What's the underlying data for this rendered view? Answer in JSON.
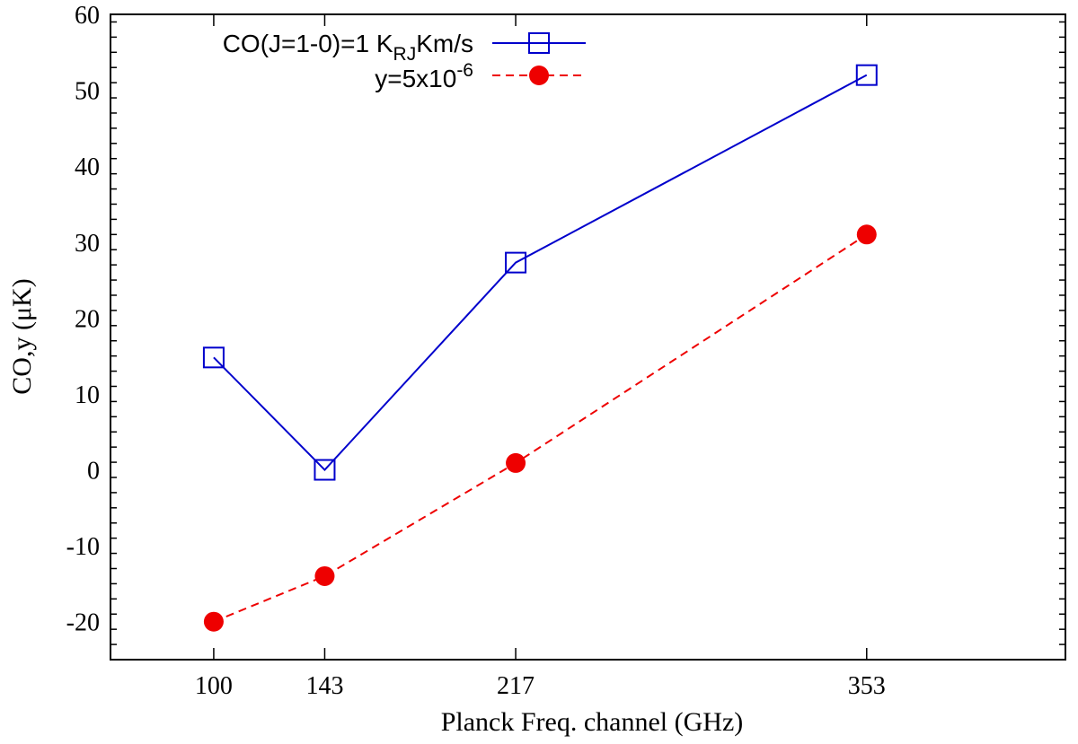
{
  "chart_data": {
    "type": "line",
    "title": "",
    "xlabel": "Planck Freq. channel (GHz)",
    "ylabel": "CO,y (μK)",
    "xlim": [
      60,
      430
    ],
    "ylim": [
      -25,
      60
    ],
    "x": [
      100,
      143,
      217,
      353
    ],
    "xticks": [
      100,
      143,
      217,
      353
    ],
    "yticks": [
      -20,
      -10,
      0,
      10,
      20,
      30,
      40,
      50,
      60
    ],
    "grid": false,
    "legend_position": "top-left",
    "series": [
      {
        "name": "CO(J=1-0)=1 K_RJ Km/s",
        "legend_main": "CO(J=1-0)=1 K",
        "legend_sub": "RJ",
        "legend_tail": "Km/s",
        "color": "#0000cc",
        "line_style": "solid",
        "marker": "open-square",
        "values": [
          14.8,
          0.0,
          27.3,
          52.0
        ]
      },
      {
        "name": "y=5x10^-6",
        "legend_main": "y=5x10",
        "legend_sup": "-6",
        "color": "#ee0000",
        "line_style": "dashed",
        "marker": "filled-circle",
        "values": [
          -20.0,
          -14.0,
          0.9,
          31.0
        ]
      }
    ]
  }
}
